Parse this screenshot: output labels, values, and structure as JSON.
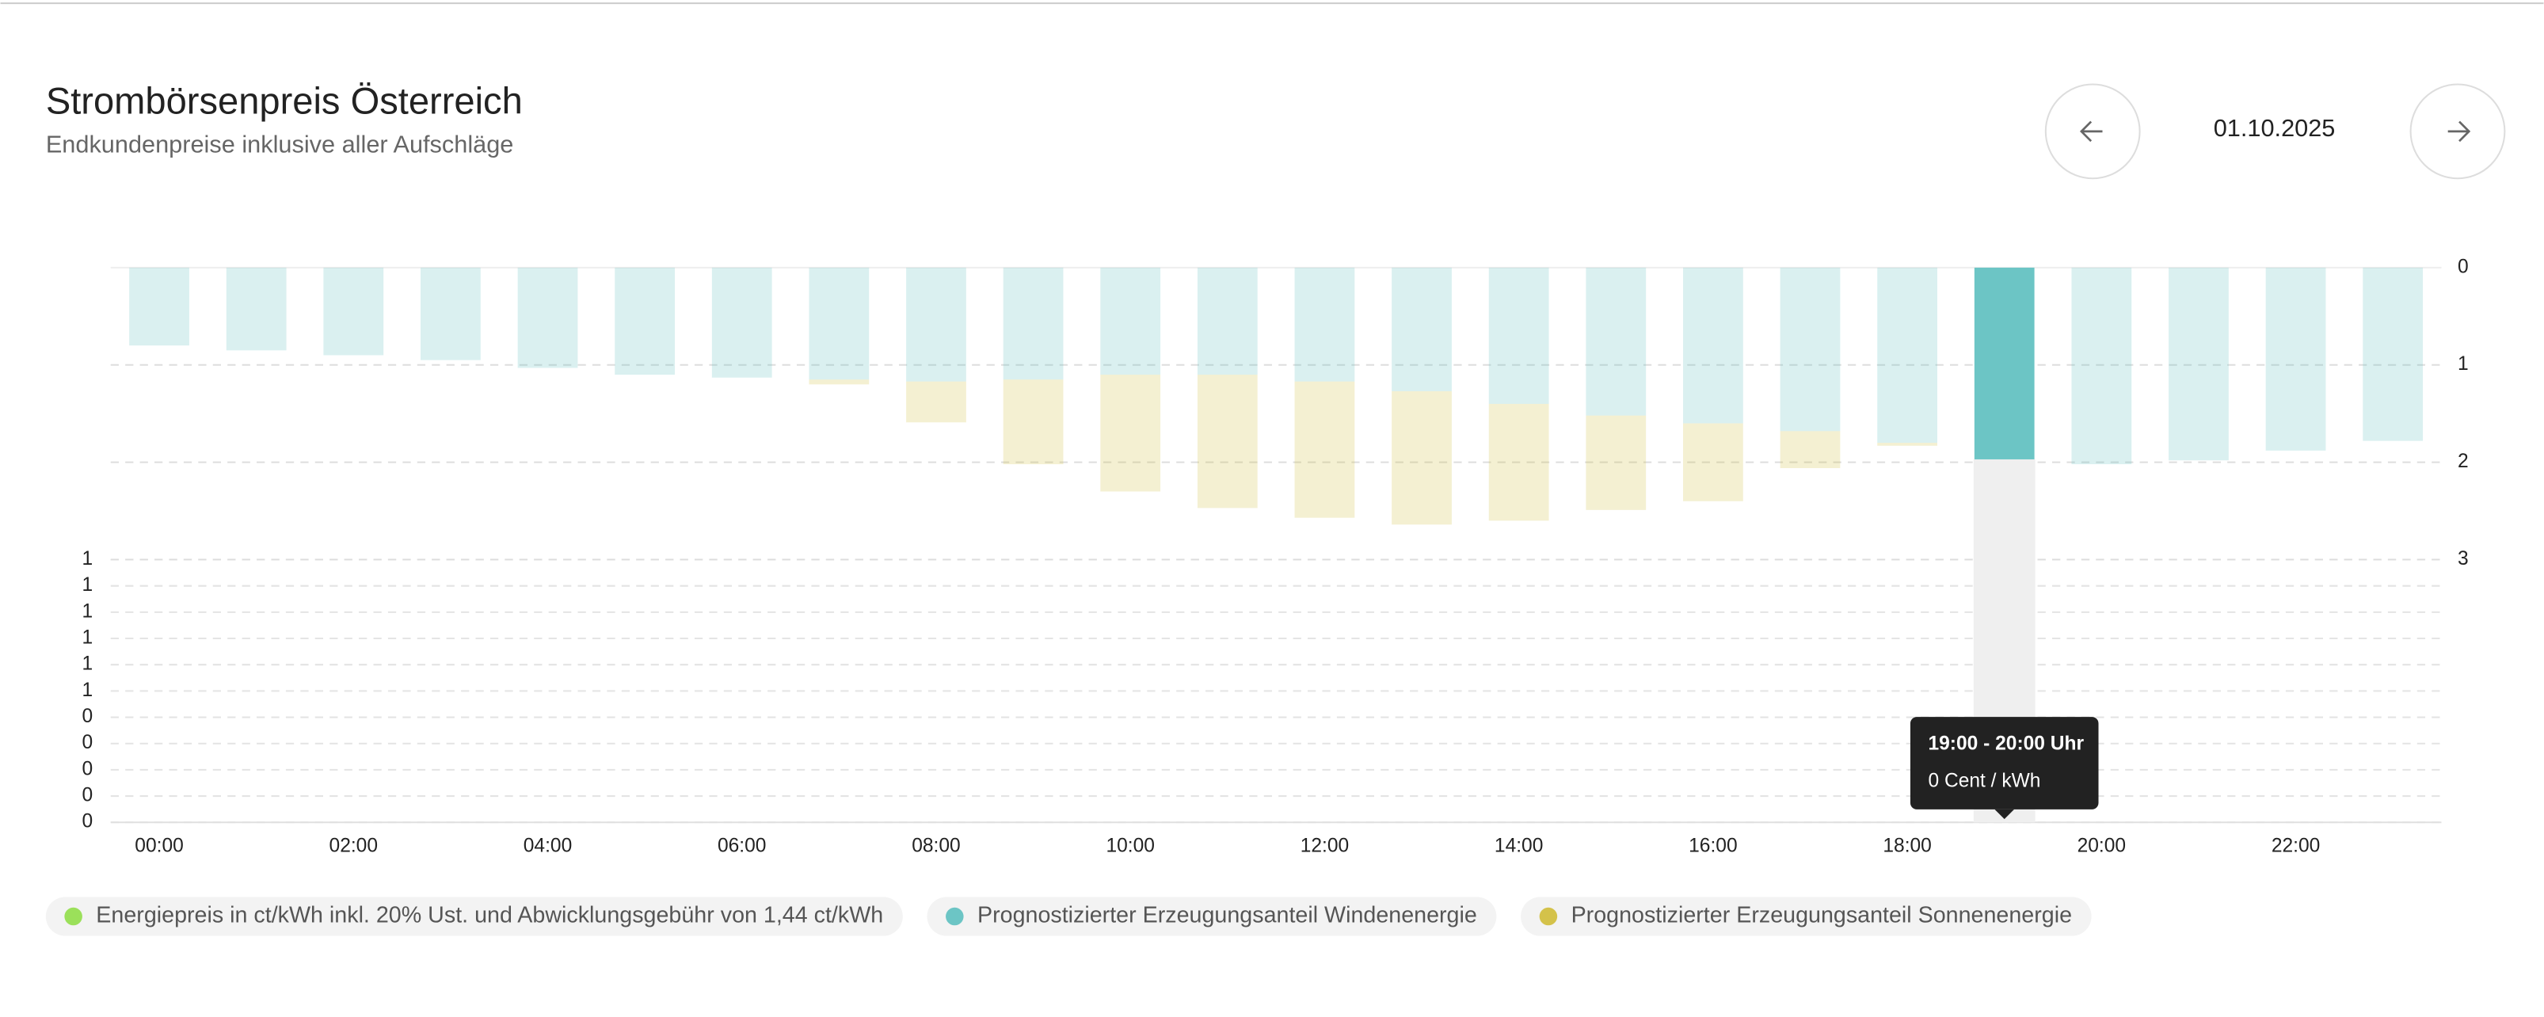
{
  "navigation": {
    "date": "01.10.2025"
  },
  "chart_data": {
    "type": "bar",
    "stacked": true,
    "title": "Strombörsenpreis Österreich",
    "subtitle": "Endkundenpreise inklusive aller Aufschläge",
    "categories": [
      "00:00",
      null,
      "02:00",
      null,
      "04:00",
      null,
      "06:00",
      null,
      "08:00",
      null,
      "10:00",
      null,
      "12:00",
      null,
      "14:00",
      null,
      "16:00",
      null,
      "18:00",
      null,
      "20:00",
      null,
      "22:00",
      null
    ],
    "series": [
      {
        "name": "Energiepreis in ct/kWh inkl. 20% Ust. und Abwicklungsgebühr von 1,44 ct/kWh",
        "color": "#9be05a",
        "axis": "y",
        "values": [
          0,
          0,
          0,
          0,
          0,
          0,
          0,
          0,
          0,
          0,
          0,
          0,
          0,
          0,
          0,
          0,
          0,
          0,
          0,
          0,
          0,
          0,
          0,
          0
        ]
      },
      {
        "name": "Prognostizierter Erzeugungsanteil Windenenergie",
        "color": "#6cc5c5",
        "axis": "y2",
        "values": [
          0.8,
          0.85,
          0.9,
          0.95,
          1.03,
          1.1,
          1.13,
          1.15,
          1.17,
          1.15,
          1.1,
          1.1,
          1.17,
          1.27,
          1.4,
          1.52,
          1.6,
          1.68,
          1.8,
          1.97,
          2.02,
          1.98,
          1.88,
          1.78
        ]
      },
      {
        "name": "Prognostizierter Erzeugungsanteil Sonnenenergie",
        "color": "#d4c24a",
        "axis": "y2",
        "values": [
          0,
          0,
          0,
          0,
          0,
          0,
          0,
          0.05,
          0.42,
          0.87,
          1.2,
          1.37,
          1.4,
          1.37,
          1.2,
          0.97,
          0.8,
          0.38,
          0.03,
          0,
          0,
          0,
          0,
          0
        ]
      }
    ],
    "ylim": [
      0,
      1
    ],
    "yticks": [
      {
        "value": 1,
        "label": "1"
      },
      {
        "value": 0.9,
        "label": "1"
      },
      {
        "value": 0.8,
        "label": "1"
      },
      {
        "value": 0.7,
        "label": "1"
      },
      {
        "value": 0.6,
        "label": "1"
      },
      {
        "value": 0.5,
        "label": "1"
      },
      {
        "value": 0.4,
        "label": "0"
      },
      {
        "value": 0.3,
        "label": "0"
      },
      {
        "value": 0.2,
        "label": "0"
      },
      {
        "value": 0.1,
        "label": "0"
      },
      0
    ],
    "y2lim": [
      0,
      3
    ],
    "y2ticks": [
      0,
      1,
      2,
      3
    ],
    "y2_reversed": true,
    "grid": true,
    "highlighted_category": 19,
    "tooltip": {
      "title": "19:00 - 20:00 Uhr",
      "text": "0 Cent / kWh"
    }
  }
}
